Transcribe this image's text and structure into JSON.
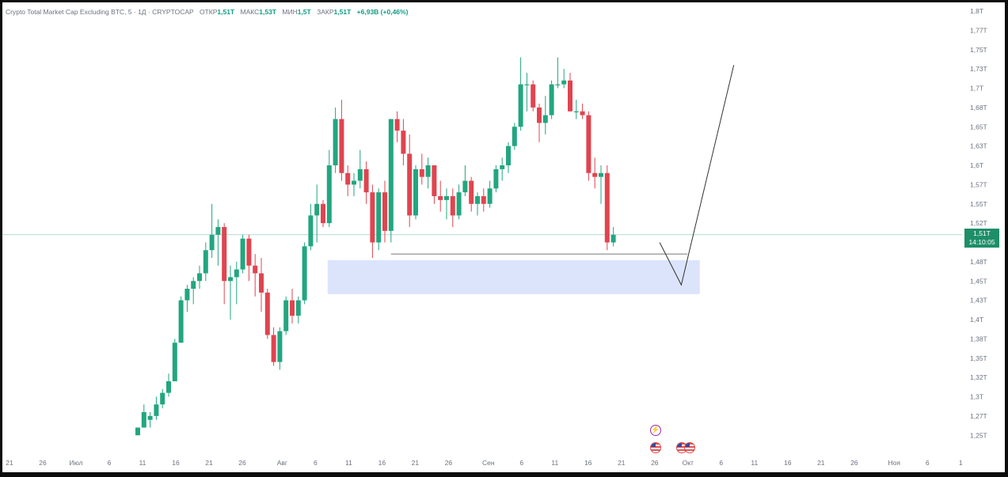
{
  "header": {
    "title": "Crypto Total Market Cap Excluding BTC, 5 · 1Д · CRYPTOCAP",
    "open_label": "ОТКР",
    "open_value": "1,51T",
    "high_label": "МАКС",
    "high_value": "1,53T",
    "low_label": "МИН",
    "low_value": "1,5T",
    "close_label": "ЗАКР",
    "close_value": "1,51T",
    "change": "+6,93B (+0,46%)"
  },
  "current_price": {
    "price_label": "1,51T",
    "countdown": "14:10:05"
  },
  "colors": {
    "up": "#22a680",
    "down": "#e0444f",
    "zone_fill": "#dce4fc",
    "background": "#ffffff",
    "price_tag": "#1e8e69"
  },
  "icons": {
    "event_flash": "⚡",
    "event_us": "us-flag-icon"
  },
  "chart_data": {
    "type": "candlestick",
    "title": "Crypto Total Market Cap Excluding BTC",
    "interval": "1Д",
    "y_unit": "T",
    "ylim": [
      1.23,
      1.81
    ],
    "y_ticks": [
      "1,8T",
      "1,77T",
      "1,75T",
      "1,73T",
      "1,7T",
      "1,68T",
      "1,65T",
      "1,63T",
      "1,6T",
      "1,57T",
      "1,55T",
      "1,52T",
      "1,48T",
      "1,45T",
      "1,43T",
      "1,4T",
      "1,38T",
      "1,35T",
      "1,32T",
      "1,3T",
      "1,27T",
      "1,25T"
    ],
    "y_tick_values": [
      1.8,
      1.775,
      1.75,
      1.725,
      1.7,
      1.675,
      1.65,
      1.625,
      1.6,
      1.575,
      1.55,
      1.525,
      1.475,
      1.45,
      1.425,
      1.4,
      1.375,
      1.35,
      1.325,
      1.3,
      1.275,
      1.25
    ],
    "x_ticks": [
      "21",
      "26",
      "Июл",
      "6",
      "11",
      "16",
      "21",
      "26",
      "Авг",
      "6",
      "11",
      "16",
      "21",
      "26",
      "Сен",
      "6",
      "11",
      "16",
      "21",
      "26",
      "Окт",
      "6",
      "11",
      "16",
      "21",
      "26",
      "Ноя",
      "6",
      "1"
    ],
    "x_tick_days": [
      -10,
      -5,
      0,
      5,
      10,
      15,
      20,
      25,
      31,
      36,
      41,
      46,
      51,
      56,
      62,
      67,
      72,
      77,
      82,
      87,
      92,
      97,
      102,
      107,
      112,
      117,
      123,
      128,
      133
    ],
    "x_start_label": "Июл",
    "candles": [
      {
        "o": 1.25,
        "h": 1.26,
        "l": 1.25,
        "c": 1.26
      },
      {
        "o": 1.26,
        "h": 1.29,
        "l": 1.26,
        "c": 1.28
      },
      {
        "o": 1.27,
        "h": 1.28,
        "l": 1.26,
        "c": 1.275
      },
      {
        "o": 1.275,
        "h": 1.3,
        "l": 1.27,
        "c": 1.29
      },
      {
        "o": 1.29,
        "h": 1.31,
        "l": 1.285,
        "c": 1.305
      },
      {
        "o": 1.305,
        "h": 1.33,
        "l": 1.3,
        "c": 1.32
      },
      {
        "o": 1.32,
        "h": 1.375,
        "l": 1.32,
        "c": 1.37
      },
      {
        "o": 1.37,
        "h": 1.43,
        "l": 1.37,
        "c": 1.425
      },
      {
        "o": 1.425,
        "h": 1.445,
        "l": 1.41,
        "c": 1.44
      },
      {
        "o": 1.44,
        "h": 1.455,
        "l": 1.42,
        "c": 1.45
      },
      {
        "o": 1.45,
        "h": 1.47,
        "l": 1.44,
        "c": 1.46
      },
      {
        "o": 1.46,
        "h": 1.5,
        "l": 1.45,
        "c": 1.49
      },
      {
        "o": 1.49,
        "h": 1.55,
        "l": 1.48,
        "c": 1.51
      },
      {
        "o": 1.51,
        "h": 1.53,
        "l": 1.47,
        "c": 1.52
      },
      {
        "o": 1.52,
        "h": 1.525,
        "l": 1.42,
        "c": 1.45
      },
      {
        "o": 1.45,
        "h": 1.47,
        "l": 1.4,
        "c": 1.455
      },
      {
        "o": 1.455,
        "h": 1.475,
        "l": 1.42,
        "c": 1.465
      },
      {
        "o": 1.465,
        "h": 1.51,
        "l": 1.46,
        "c": 1.505
      },
      {
        "o": 1.505,
        "h": 1.51,
        "l": 1.45,
        "c": 1.47
      },
      {
        "o": 1.47,
        "h": 1.485,
        "l": 1.43,
        "c": 1.46
      },
      {
        "o": 1.46,
        "h": 1.48,
        "l": 1.41,
        "c": 1.435
      },
      {
        "o": 1.435,
        "h": 1.44,
        "l": 1.375,
        "c": 1.38
      },
      {
        "o": 1.38,
        "h": 1.39,
        "l": 1.34,
        "c": 1.345
      },
      {
        "o": 1.345,
        "h": 1.39,
        "l": 1.335,
        "c": 1.385
      },
      {
        "o": 1.385,
        "h": 1.43,
        "l": 1.38,
        "c": 1.425
      },
      {
        "o": 1.425,
        "h": 1.44,
        "l": 1.395,
        "c": 1.405
      },
      {
        "o": 1.405,
        "h": 1.43,
        "l": 1.395,
        "c": 1.425
      },
      {
        "o": 1.425,
        "h": 1.5,
        "l": 1.42,
        "c": 1.495
      },
      {
        "o": 1.495,
        "h": 1.55,
        "l": 1.49,
        "c": 1.535
      },
      {
        "o": 1.535,
        "h": 1.575,
        "l": 1.5,
        "c": 1.55
      },
      {
        "o": 1.55,
        "h": 1.555,
        "l": 1.52,
        "c": 1.525
      },
      {
        "o": 1.525,
        "h": 1.62,
        "l": 1.52,
        "c": 1.6
      },
      {
        "o": 1.6,
        "h": 1.675,
        "l": 1.59,
        "c": 1.66
      },
      {
        "o": 1.66,
        "h": 1.685,
        "l": 1.58,
        "c": 1.59
      },
      {
        "o": 1.59,
        "h": 1.6,
        "l": 1.56,
        "c": 1.575
      },
      {
        "o": 1.575,
        "h": 1.59,
        "l": 1.56,
        "c": 1.58
      },
      {
        "o": 1.58,
        "h": 1.62,
        "l": 1.57,
        "c": 1.595
      },
      {
        "o": 1.595,
        "h": 1.605,
        "l": 1.55,
        "c": 1.565
      },
      {
        "o": 1.565,
        "h": 1.575,
        "l": 1.48,
        "c": 1.5
      },
      {
        "o": 1.5,
        "h": 1.57,
        "l": 1.49,
        "c": 1.565
      },
      {
        "o": 1.565,
        "h": 1.58,
        "l": 1.5,
        "c": 1.515
      },
      {
        "o": 1.515,
        "h": 1.66,
        "l": 1.5,
        "c": 1.66
      },
      {
        "o": 1.66,
        "h": 1.67,
        "l": 1.63,
        "c": 1.645
      },
      {
        "o": 1.645,
        "h": 1.66,
        "l": 1.6,
        "c": 1.615
      },
      {
        "o": 1.615,
        "h": 1.64,
        "l": 1.52,
        "c": 1.535
      },
      {
        "o": 1.535,
        "h": 1.6,
        "l": 1.53,
        "c": 1.595
      },
      {
        "o": 1.595,
        "h": 1.615,
        "l": 1.575,
        "c": 1.585
      },
      {
        "o": 1.585,
        "h": 1.61,
        "l": 1.57,
        "c": 1.6
      },
      {
        "o": 1.6,
        "h": 1.6,
        "l": 1.55,
        "c": 1.56
      },
      {
        "o": 1.56,
        "h": 1.58,
        "l": 1.54,
        "c": 1.555
      },
      {
        "o": 1.555,
        "h": 1.57,
        "l": 1.53,
        "c": 1.56
      },
      {
        "o": 1.56,
        "h": 1.57,
        "l": 1.52,
        "c": 1.535
      },
      {
        "o": 1.535,
        "h": 1.575,
        "l": 1.53,
        "c": 1.565
      },
      {
        "o": 1.565,
        "h": 1.6,
        "l": 1.56,
        "c": 1.58
      },
      {
        "o": 1.58,
        "h": 1.585,
        "l": 1.54,
        "c": 1.55
      },
      {
        "o": 1.55,
        "h": 1.565,
        "l": 1.535,
        "c": 1.56
      },
      {
        "o": 1.56,
        "h": 1.57,
        "l": 1.54,
        "c": 1.55
      },
      {
        "o": 1.55,
        "h": 1.58,
        "l": 1.545,
        "c": 1.57
      },
      {
        "o": 1.57,
        "h": 1.6,
        "l": 1.565,
        "c": 1.595
      },
      {
        "o": 1.595,
        "h": 1.61,
        "l": 1.58,
        "c": 1.6
      },
      {
        "o": 1.6,
        "h": 1.63,
        "l": 1.59,
        "c": 1.625
      },
      {
        "o": 1.625,
        "h": 1.655,
        "l": 1.62,
        "c": 1.65
      },
      {
        "o": 1.65,
        "h": 1.74,
        "l": 1.645,
        "c": 1.705
      },
      {
        "o": 1.705,
        "h": 1.72,
        "l": 1.67,
        "c": 1.705
      },
      {
        "o": 1.705,
        "h": 1.71,
        "l": 1.67,
        "c": 1.675
      },
      {
        "o": 1.675,
        "h": 1.68,
        "l": 1.63,
        "c": 1.655
      },
      {
        "o": 1.655,
        "h": 1.69,
        "l": 1.64,
        "c": 1.665
      },
      {
        "o": 1.665,
        "h": 1.71,
        "l": 1.66,
        "c": 1.705
      },
      {
        "o": 1.705,
        "h": 1.74,
        "l": 1.7,
        "c": 1.705
      },
      {
        "o": 1.705,
        "h": 1.725,
        "l": 1.7,
        "c": 1.71
      },
      {
        "o": 1.71,
        "h": 1.72,
        "l": 1.67,
        "c": 1.67
      },
      {
        "o": 1.67,
        "h": 1.685,
        "l": 1.66,
        "c": 1.67
      },
      {
        "o": 1.67,
        "h": 1.68,
        "l": 1.66,
        "c": 1.665
      },
      {
        "o": 1.665,
        "h": 1.67,
        "l": 1.58,
        "c": 1.59
      },
      {
        "o": 1.59,
        "h": 1.61,
        "l": 1.57,
        "c": 1.585
      },
      {
        "o": 1.585,
        "h": 1.6,
        "l": 1.55,
        "c": 1.59
      },
      {
        "o": 1.59,
        "h": 1.6,
        "l": 1.49,
        "c": 1.5
      },
      {
        "o": 1.5,
        "h": 1.52,
        "l": 1.495,
        "c": 1.51
      }
    ],
    "drawings": {
      "support_line": {
        "from_index": 41,
        "to_index": 89,
        "price": 1.485
      },
      "demand_zone": {
        "from_index": 31,
        "to_index": 91,
        "top": 1.477,
        "bottom": 1.433
      },
      "projection_path": [
        {
          "index": 84.5,
          "price": 1.5
        },
        {
          "index": 88.0,
          "price": 1.445
        },
        {
          "index": 96.5,
          "price": 1.73
        }
      ]
    },
    "current_price": 1.51,
    "grid": false,
    "legend_position": "top-left"
  }
}
